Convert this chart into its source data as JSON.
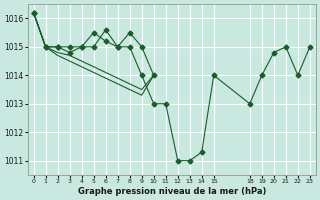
{
  "title": "Graphe pression niveau de la mer (hPa)",
  "background_color": "#c8e8e0",
  "grid_color": "#ffffff",
  "line_color": "#1a5c2a",
  "ylim": [
    1010.5,
    1016.5
  ],
  "yticks": [
    1011,
    1012,
    1013,
    1014,
    1015,
    1016
  ],
  "xtick_positions": [
    0,
    1,
    2,
    3,
    4,
    5,
    6,
    7,
    8,
    9,
    10,
    11,
    12,
    13,
    14,
    15,
    18,
    19,
    20,
    21,
    22,
    23
  ],
  "xtick_labels": [
    "0",
    "1",
    "2",
    "3",
    "4",
    "5",
    "6",
    "7",
    "8",
    "9",
    "10",
    "11",
    "12",
    "13",
    "14",
    "15",
    "18",
    "19",
    "20",
    "21",
    "22",
    "23"
  ],
  "xlim": [
    -0.5,
    23.5
  ],
  "series": [
    {
      "x": [
        0,
        1,
        2,
        3,
        4,
        5,
        6,
        7,
        8,
        9,
        10,
        11,
        12,
        13,
        14,
        15,
        18,
        19,
        20,
        21,
        22,
        23
      ],
      "y": [
        1016.2,
        1015.0,
        1015.0,
        1014.8,
        1015.0,
        1015.5,
        1015.2,
        1015.0,
        1015.0,
        1014.0,
        1013.0,
        1013.0,
        1011.0,
        1011.0,
        1011.3,
        1014.0,
        1013.0,
        1014.0,
        1014.8,
        1015.0,
        1014.0,
        1015.0
      ],
      "marker": true
    },
    {
      "x": [
        0,
        1,
        2,
        3,
        4,
        5,
        6,
        7,
        8,
        9,
        10
      ],
      "y": [
        1016.2,
        1015.0,
        1015.0,
        1015.0,
        1015.0,
        1015.0,
        1015.6,
        1015.0,
        1015.5,
        1015.0,
        1014.0
      ],
      "marker": true
    },
    {
      "x": [
        0,
        1,
        2,
        3,
        4,
        5,
        6,
        7,
        8,
        9,
        10
      ],
      "y": [
        1016.2,
        1015.0,
        1014.8,
        1014.7,
        1014.5,
        1014.3,
        1014.1,
        1013.9,
        1013.7,
        1013.5,
        1014.0
      ],
      "marker": false
    },
    {
      "x": [
        0,
        1,
        2,
        3,
        4,
        5,
        6,
        7,
        8,
        9,
        10
      ],
      "y": [
        1016.2,
        1015.0,
        1014.7,
        1014.5,
        1014.3,
        1014.1,
        1013.9,
        1013.7,
        1013.5,
        1013.3,
        1014.0
      ],
      "marker": false
    }
  ]
}
